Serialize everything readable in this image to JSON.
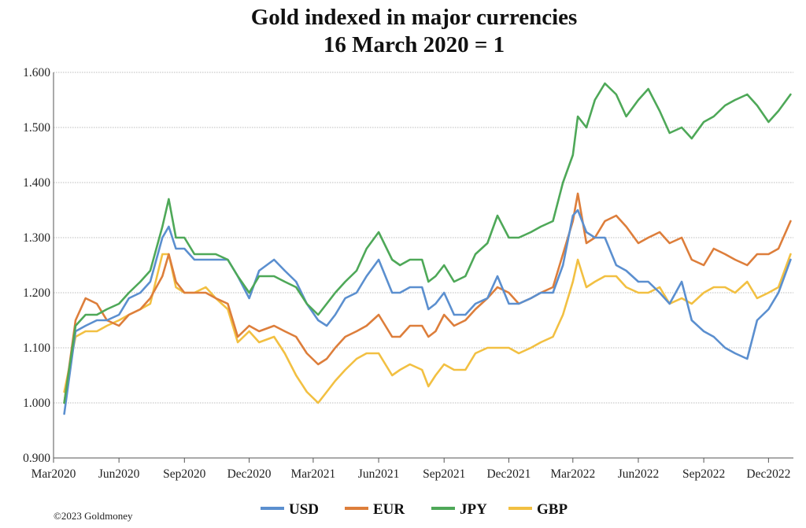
{
  "chart_data": {
    "type": "line",
    "title": "Gold indexed in major currencies",
    "subtitle": "16 March 2020 = 1",
    "xlabel": "",
    "ylabel": "",
    "ylim": [
      0.9,
      1.6
    ],
    "yticks": [
      "0.900",
      "1.000",
      "1.100",
      "1.200",
      "1.300",
      "1.400",
      "1.500",
      "1.600"
    ],
    "grid": true,
    "legend_position": "bottom",
    "xtick_labels": [
      "Mar2020",
      "Jun2020",
      "Sep2020",
      "Dec2020",
      "Mar2021",
      "Jun2021",
      "Sep2021",
      "Dec2021",
      "Mar2022",
      "Jun2022",
      "Sep2022",
      "Dec2022"
    ],
    "x": [
      "2020-03-16",
      "2020-04-01",
      "2020-04-15",
      "2020-05-01",
      "2020-05-15",
      "2020-06-01",
      "2020-06-15",
      "2020-07-01",
      "2020-07-15",
      "2020-08-01",
      "2020-08-10",
      "2020-08-20",
      "2020-09-01",
      "2020-09-15",
      "2020-10-01",
      "2020-10-15",
      "2020-11-01",
      "2020-11-15",
      "2020-12-01",
      "2020-12-15",
      "2021-01-05",
      "2021-01-20",
      "2021-02-05",
      "2021-02-20",
      "2021-03-08",
      "2021-03-20",
      "2021-04-01",
      "2021-04-15",
      "2021-05-01",
      "2021-05-15",
      "2021-06-01",
      "2021-06-20",
      "2021-07-01",
      "2021-07-15",
      "2021-08-01",
      "2021-08-10",
      "2021-08-20",
      "2021-09-01",
      "2021-09-15",
      "2021-10-01",
      "2021-10-15",
      "2021-11-01",
      "2021-11-15",
      "2021-12-01",
      "2021-12-15",
      "2022-01-01",
      "2022-01-15",
      "2022-02-01",
      "2022-02-15",
      "2022-03-01",
      "2022-03-08",
      "2022-03-20",
      "2022-04-01",
      "2022-04-15",
      "2022-05-01",
      "2022-05-15",
      "2022-06-01",
      "2022-06-15",
      "2022-07-01",
      "2022-07-15",
      "2022-08-01",
      "2022-08-15",
      "2022-09-01",
      "2022-09-15",
      "2022-10-01",
      "2022-10-15",
      "2022-11-01",
      "2022-11-15",
      "2022-12-01",
      "2022-12-15",
      "2023-01-01"
    ],
    "series": [
      {
        "name": "USD",
        "color": "#5b8fcf",
        "values": [
          0.98,
          1.13,
          1.14,
          1.15,
          1.15,
          1.16,
          1.19,
          1.2,
          1.22,
          1.3,
          1.32,
          1.28,
          1.28,
          1.26,
          1.26,
          1.26,
          1.26,
          1.23,
          1.19,
          1.24,
          1.26,
          1.24,
          1.22,
          1.18,
          1.15,
          1.14,
          1.16,
          1.19,
          1.2,
          1.23,
          1.26,
          1.2,
          1.2,
          1.21,
          1.21,
          1.17,
          1.18,
          1.2,
          1.16,
          1.16,
          1.18,
          1.19,
          1.23,
          1.18,
          1.18,
          1.19,
          1.2,
          1.2,
          1.25,
          1.34,
          1.35,
          1.31,
          1.3,
          1.3,
          1.25,
          1.24,
          1.22,
          1.22,
          1.2,
          1.18,
          1.22,
          1.15,
          1.13,
          1.12,
          1.1,
          1.09,
          1.08,
          1.15,
          1.17,
          1.2,
          1.26
        ]
      },
      {
        "name": "EUR",
        "color": "#dd7e3b",
        "values": [
          1.0,
          1.15,
          1.19,
          1.18,
          1.15,
          1.14,
          1.16,
          1.17,
          1.19,
          1.23,
          1.27,
          1.22,
          1.2,
          1.2,
          1.2,
          1.19,
          1.18,
          1.12,
          1.14,
          1.13,
          1.14,
          1.13,
          1.12,
          1.09,
          1.07,
          1.08,
          1.1,
          1.12,
          1.13,
          1.14,
          1.16,
          1.12,
          1.12,
          1.14,
          1.14,
          1.12,
          1.13,
          1.16,
          1.14,
          1.15,
          1.17,
          1.19,
          1.21,
          1.2,
          1.18,
          1.19,
          1.2,
          1.21,
          1.27,
          1.33,
          1.38,
          1.29,
          1.3,
          1.33,
          1.34,
          1.32,
          1.29,
          1.3,
          1.31,
          1.29,
          1.3,
          1.26,
          1.25,
          1.28,
          1.27,
          1.26,
          1.25,
          1.27,
          1.27,
          1.28,
          1.33
        ]
      },
      {
        "name": "JPY",
        "color": "#4ea858",
        "values": [
          1.0,
          1.14,
          1.16,
          1.16,
          1.17,
          1.18,
          1.2,
          1.22,
          1.24,
          1.32,
          1.37,
          1.3,
          1.3,
          1.27,
          1.27,
          1.27,
          1.26,
          1.23,
          1.2,
          1.23,
          1.23,
          1.22,
          1.21,
          1.18,
          1.16,
          1.18,
          1.2,
          1.22,
          1.24,
          1.28,
          1.31,
          1.26,
          1.25,
          1.26,
          1.26,
          1.22,
          1.23,
          1.25,
          1.22,
          1.23,
          1.27,
          1.29,
          1.34,
          1.3,
          1.3,
          1.31,
          1.32,
          1.33,
          1.4,
          1.45,
          1.52,
          1.5,
          1.55,
          1.58,
          1.56,
          1.52,
          1.55,
          1.57,
          1.53,
          1.49,
          1.5,
          1.48,
          1.51,
          1.52,
          1.54,
          1.55,
          1.56,
          1.54,
          1.51,
          1.53,
          1.56
        ]
      },
      {
        "name": "GBP",
        "color": "#f2c042",
        "values": [
          1.02,
          1.12,
          1.13,
          1.13,
          1.14,
          1.15,
          1.16,
          1.17,
          1.18,
          1.27,
          1.27,
          1.21,
          1.2,
          1.2,
          1.21,
          1.19,
          1.17,
          1.11,
          1.13,
          1.11,
          1.12,
          1.09,
          1.05,
          1.02,
          1.0,
          1.02,
          1.04,
          1.06,
          1.08,
          1.09,
          1.09,
          1.05,
          1.06,
          1.07,
          1.06,
          1.03,
          1.05,
          1.07,
          1.06,
          1.06,
          1.09,
          1.1,
          1.1,
          1.1,
          1.09,
          1.1,
          1.11,
          1.12,
          1.16,
          1.22,
          1.26,
          1.21,
          1.22,
          1.23,
          1.23,
          1.21,
          1.2,
          1.2,
          1.21,
          1.18,
          1.19,
          1.18,
          1.2,
          1.21,
          1.21,
          1.2,
          1.22,
          1.19,
          1.2,
          1.21,
          1.27
        ]
      }
    ],
    "copyright": "©2023 Goldmoney"
  }
}
